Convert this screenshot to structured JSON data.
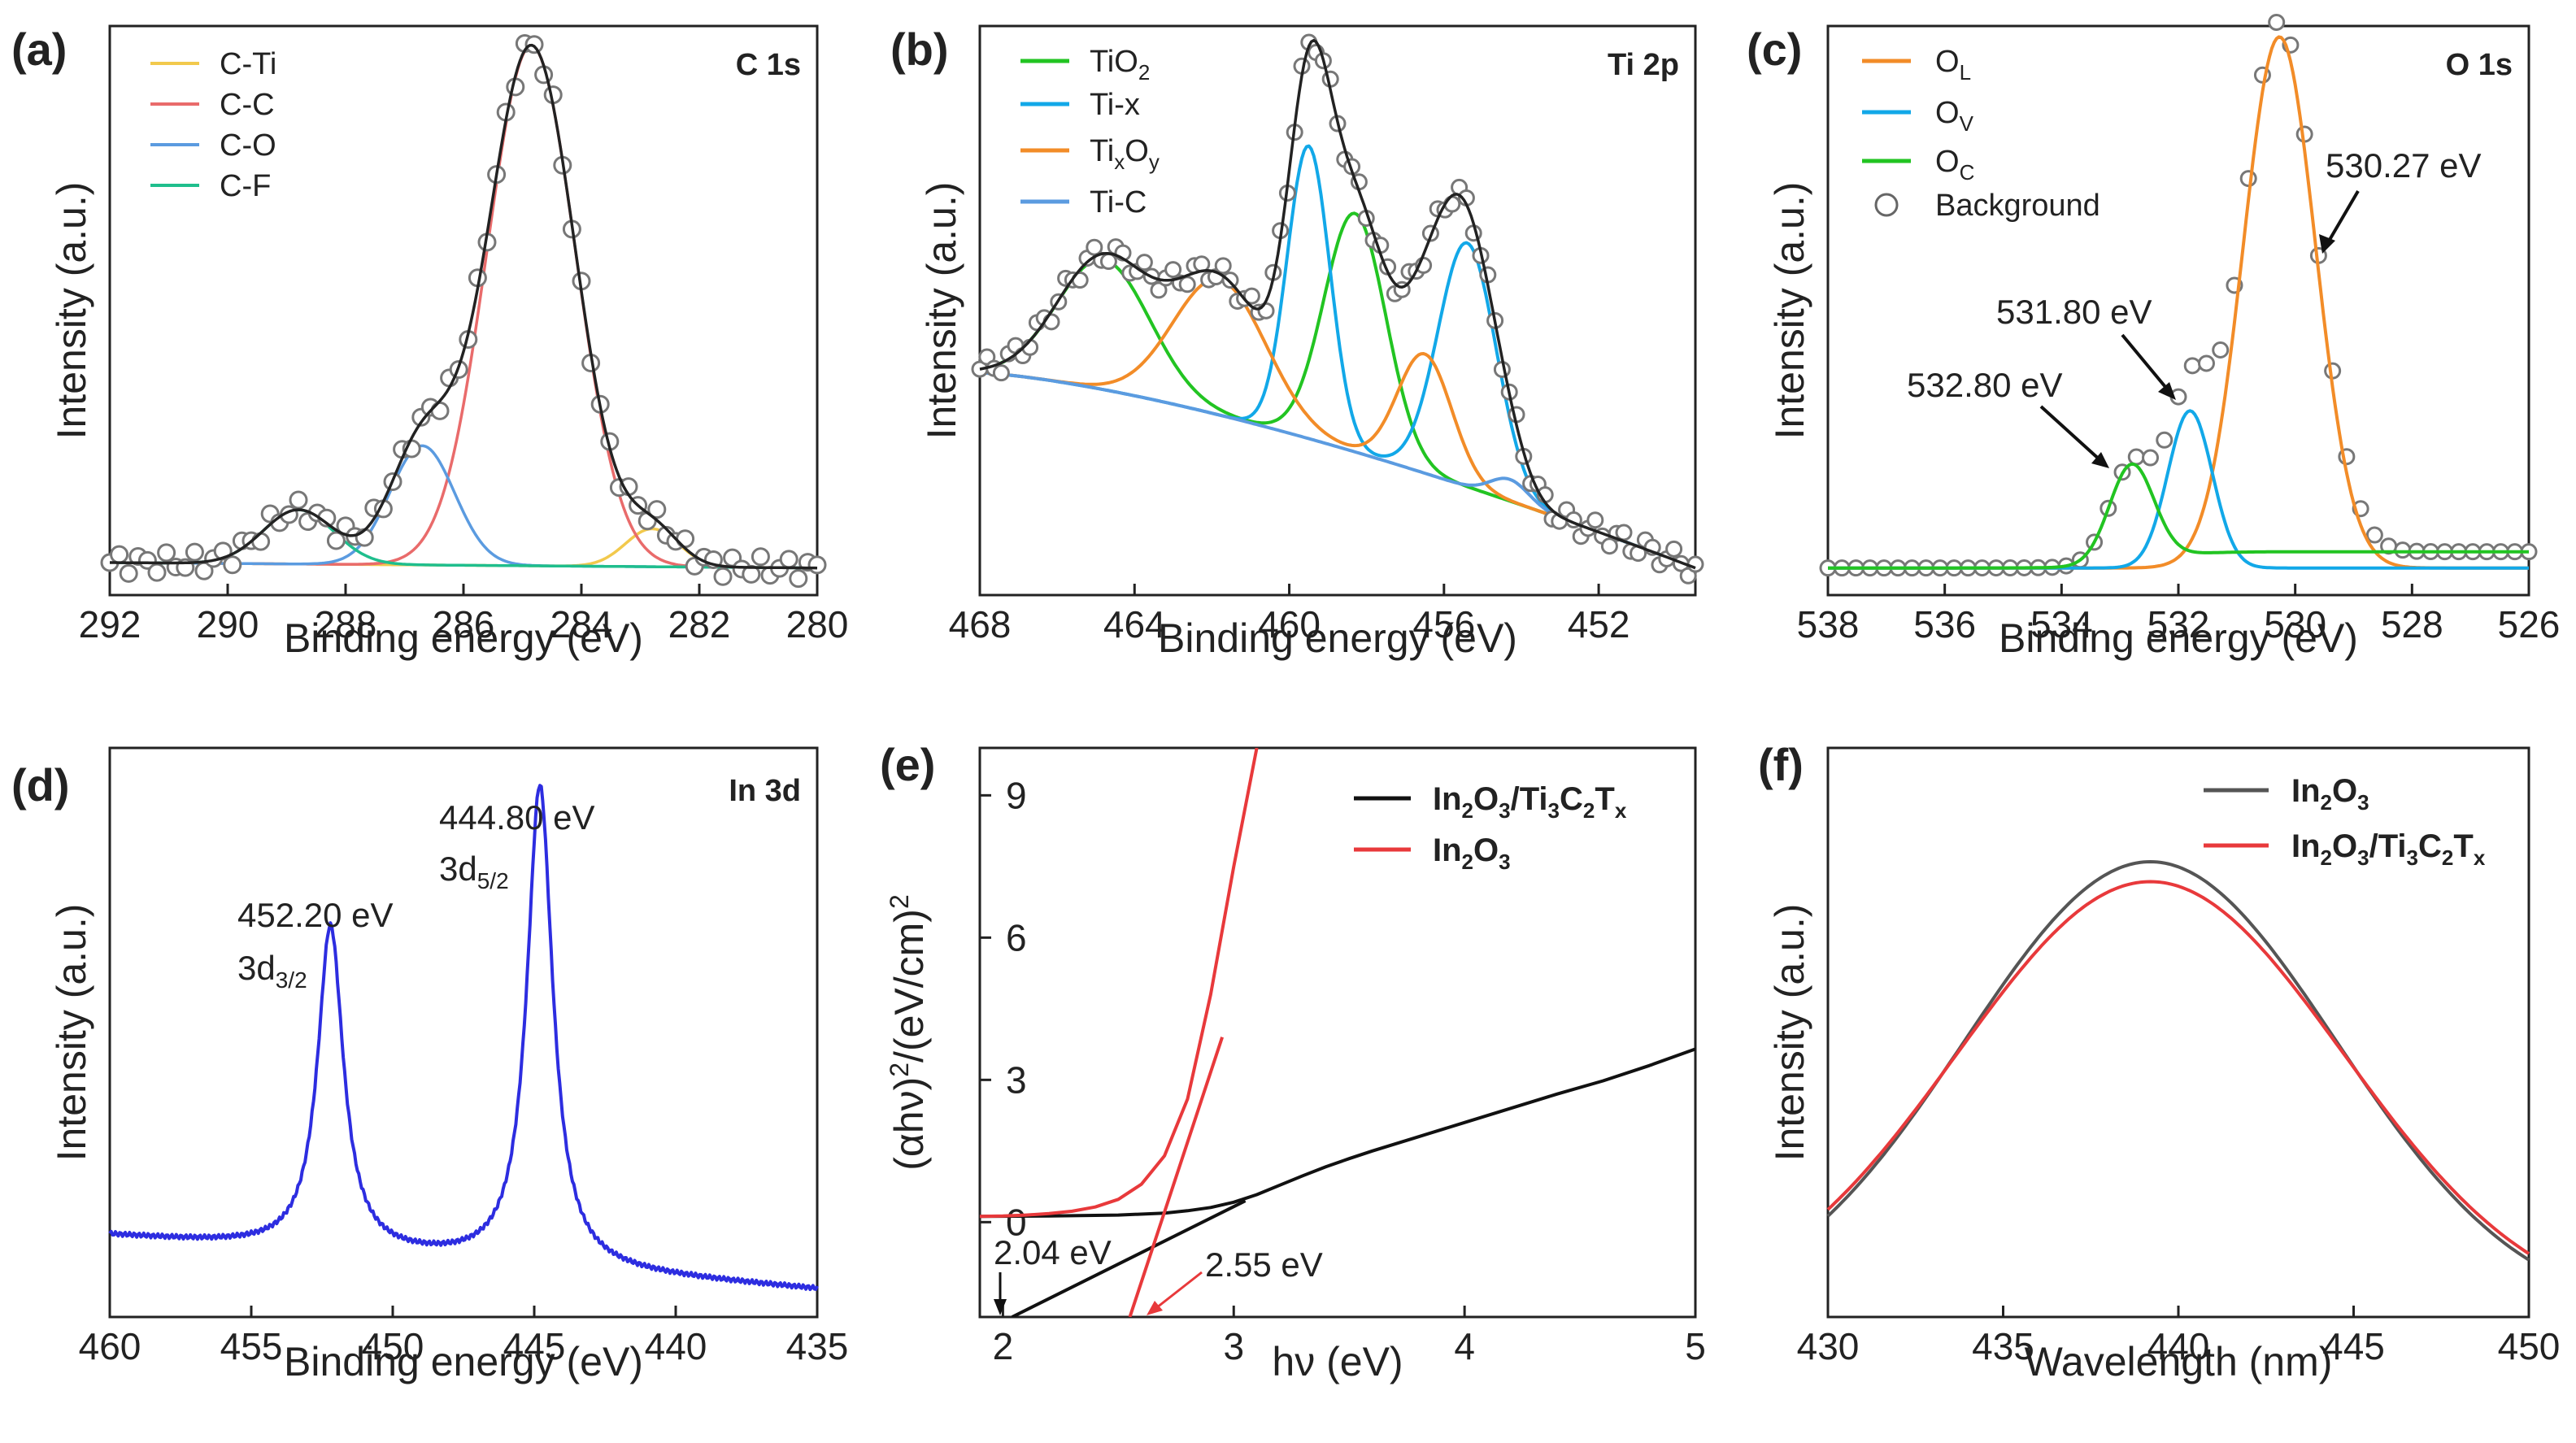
{
  "chart_data": [
    {
      "panel_label": "(a)",
      "type": "line",
      "title": "C 1s",
      "xlabel": "Binding energy (eV)",
      "ylabel": "Intensity (a.u.)",
      "xlim": [
        292,
        280
      ],
      "ylim": [
        -0.05,
        1.0
      ],
      "xticks": [
        292,
        290,
        288,
        286,
        284,
        282,
        280
      ],
      "legend_loc": "top-left",
      "components": [
        {
          "name": "C-Ti",
          "color": "#f2c94c",
          "center": 282.8,
          "height": 0.07,
          "width": 0.45
        },
        {
          "name": "C-C",
          "color": "#e96b6b",
          "center": 284.85,
          "height": 0.96,
          "width": 0.75
        },
        {
          "name": "C-O",
          "color": "#5b9be0",
          "center": 286.7,
          "height": 0.22,
          "width": 0.55
        },
        {
          "name": "C-F",
          "color": "#1fbe8d",
          "center": 288.8,
          "height": 0.1,
          "width": 0.6
        }
      ],
      "background": {
        "left": 0.01,
        "right": 0.0
      },
      "show_envelope": true,
      "show_markers": true,
      "noise": 0.02
    },
    {
      "panel_label": "(b)",
      "type": "line",
      "title": "Ti 2p",
      "xlabel": "Binding energy (eV)",
      "ylabel": "Intensity (a.u.)",
      "xlim": [
        468,
        449.5
      ],
      "ylim": [
        -0.05,
        1.0
      ],
      "xticks": [
        468,
        464,
        460,
        456,
        452
      ],
      "legend_loc": "top-left",
      "components": [
        {
          "name": "TiO2",
          "label_main": "TiO",
          "label_sub": "2",
          "label_main2": "",
          "label_sub2": "",
          "color": "#22c422",
          "peaks": [
            [
              464.8,
              0.24,
              1.2
            ],
            [
              458.3,
              0.44,
              0.8
            ]
          ]
        },
        {
          "name": "Ti-x",
          "label_main": "Ti-x",
          "label_sub": "",
          "label_main2": "",
          "label_sub2": "",
          "color": "#12a8e8",
          "peaks": [
            [
              459.5,
              0.54,
              0.55
            ],
            [
              455.4,
              0.45,
              0.75
            ]
          ]
        },
        {
          "name": "TixOy",
          "label_main": "Ti",
          "label_sub": "x",
          "label_main2": "O",
          "label_sub2": "y",
          "color": "#f28c28",
          "peaks": [
            [
              461.8,
              0.25,
              1.2
            ],
            [
              456.5,
              0.22,
              0.7
            ]
          ]
        },
        {
          "name": "Ti-C",
          "label_main": "Ti-C",
          "label_sub": "",
          "label_main2": "",
          "label_sub2": "",
          "color": "#5b9be0",
          "peaks": [
            [
              454.3,
              0.04,
              0.5
            ]
          ]
        }
      ],
      "background": {
        "left": 0.36,
        "right": 0.0
      },
      "show_envelope": true,
      "show_markers": true,
      "noise": 0.02
    },
    {
      "panel_label": "(c)",
      "type": "line",
      "title": "O 1s",
      "xlabel": "Binding energy (eV)",
      "ylabel": "Intensity (a.u.)",
      "xlim": [
        538,
        526
      ],
      "ylim": [
        -0.05,
        1.0
      ],
      "xticks": [
        538,
        536,
        534,
        532,
        530,
        528,
        526
      ],
      "legend_loc": "top-left",
      "components": [
        {
          "name": "OL",
          "label_main": "O",
          "label_sub": "L",
          "color": "#f28c28",
          "center": 530.27,
          "height": 0.98,
          "width": 0.62
        },
        {
          "name": "OV",
          "label_main": "O",
          "label_sub": "V",
          "color": "#12a8e8",
          "center": 531.8,
          "height": 0.29,
          "width": 0.38
        },
        {
          "name": "OC",
          "label_main": "O",
          "label_sub": "C",
          "color": "#22c422",
          "center": 532.8,
          "height": 0.18,
          "width": 0.38
        }
      ],
      "markers_label": "Background",
      "background": {
        "left": 0.03,
        "right": 0.0
      },
      "show_envelope": false,
      "show_markers": true,
      "annotations": [
        "530.27 eV",
        "531.80 eV",
        "532.80 eV"
      ]
    },
    {
      "panel_label": "(d)",
      "type": "line",
      "title": "In 3d",
      "xlabel": "Binding energy (eV)",
      "ylabel": "Intensity (a.u.)",
      "xlim": [
        460,
        435
      ],
      "ylim": [
        -0.05,
        1.0
      ],
      "xticks": [
        460,
        455,
        450,
        445,
        440,
        435
      ],
      "color": "#2d2de0",
      "peaks": [
        [
          452.2,
          0.6,
          0.55
        ],
        [
          444.8,
          0.89,
          0.55
        ]
      ],
      "background": {
        "left": 0.1,
        "right": 0.0
      },
      "annotations": {
        "p1_energy": "452.20 eV",
        "p1_main": "3d",
        "p1_sub": "3/2",
        "p2_energy": "444.80 eV",
        "p2_main": "3d",
        "p2_sub": "5/2"
      }
    },
    {
      "panel_label": "(e)",
      "type": "line",
      "xlabel": "hν (eV)",
      "ylabel_parts": [
        "(αhν)",
        "2",
        "/(eV/cm)",
        "2"
      ],
      "xlim": [
        1.9,
        5.0
      ],
      "ylim": [
        -2.0,
        10.0
      ],
      "xticks": [
        2,
        3,
        4,
        5
      ],
      "yticks": [
        0,
        3,
        6,
        9
      ],
      "series": [
        {
          "name": "In2O3/Ti3C2Tx",
          "color": "#111111",
          "label_parts": [
            [
              "In",
              "2",
              "O",
              "3",
              "/Ti",
              "3",
              "C",
              "2",
              "T",
              "x"
            ]
          ],
          "x": [
            1.9,
            2.2,
            2.5,
            2.7,
            2.8,
            2.9,
            3.0,
            3.1,
            3.2,
            3.3,
            3.4,
            3.5,
            3.6,
            3.8,
            4.0,
            4.2,
            4.4,
            4.6,
            4.8,
            5.0
          ],
          "y": [
            0.12,
            0.13,
            0.15,
            0.19,
            0.24,
            0.31,
            0.42,
            0.58,
            0.78,
            0.98,
            1.17,
            1.34,
            1.5,
            1.8,
            2.1,
            2.4,
            2.7,
            2.98,
            3.3,
            3.65
          ]
        },
        {
          "name": "In2O3",
          "color": "#e8393b",
          "label_parts": [
            [
              "In",
              "2",
              "O",
              "3"
            ]
          ],
          "x": [
            1.9,
            2.0,
            2.1,
            2.2,
            2.3,
            2.4,
            2.5,
            2.6,
            2.7,
            2.8,
            2.9,
            3.0,
            3.1
          ],
          "y": [
            0.12,
            0.13,
            0.15,
            0.18,
            0.23,
            0.32,
            0.48,
            0.8,
            1.4,
            2.6,
            4.8,
            7.5,
            10.0
          ]
        }
      ],
      "tangents": [
        {
          "color": "#111111",
          "x": [
            2.04,
            3.05
          ],
          "y": [
            -2.0,
            0.45
          ]
        },
        {
          "color": "#e8393b",
          "x": [
            2.55,
            2.95
          ],
          "y": [
            -2.0,
            3.9
          ]
        }
      ],
      "annotations": [
        {
          "text": "2.04 eV",
          "color": "#111111"
        },
        {
          "text": "2.55 eV",
          "color": "#e8393b"
        }
      ]
    },
    {
      "panel_label": "(f)",
      "type": "line",
      "xlabel": "Wavelength (nm)",
      "ylabel": "Intensity (a.u.)",
      "xlim": [
        430,
        450
      ],
      "ylim": [
        0,
        1.0
      ],
      "xticks": [
        430,
        435,
        440,
        445,
        450
      ],
      "series": [
        {
          "name": "In2O3",
          "color": "#555555",
          "label_parts": [
            [
              "In",
              "2",
              "O",
              "3"
            ]
          ],
          "center": 439.2,
          "sigma": 5.3,
          "height": 0.8,
          "base": 0.0
        },
        {
          "name": "In2O3/Ti3C2Tx",
          "color": "#e8393b",
          "label_parts": [
            [
              "In",
              "2",
              "O",
              "3",
              "/Ti",
              "3",
              "C",
              "2",
              "T",
              "x"
            ]
          ],
          "center": 439.2,
          "sigma": 5.5,
          "height": 0.765,
          "base": 0.0
        }
      ]
    }
  ]
}
